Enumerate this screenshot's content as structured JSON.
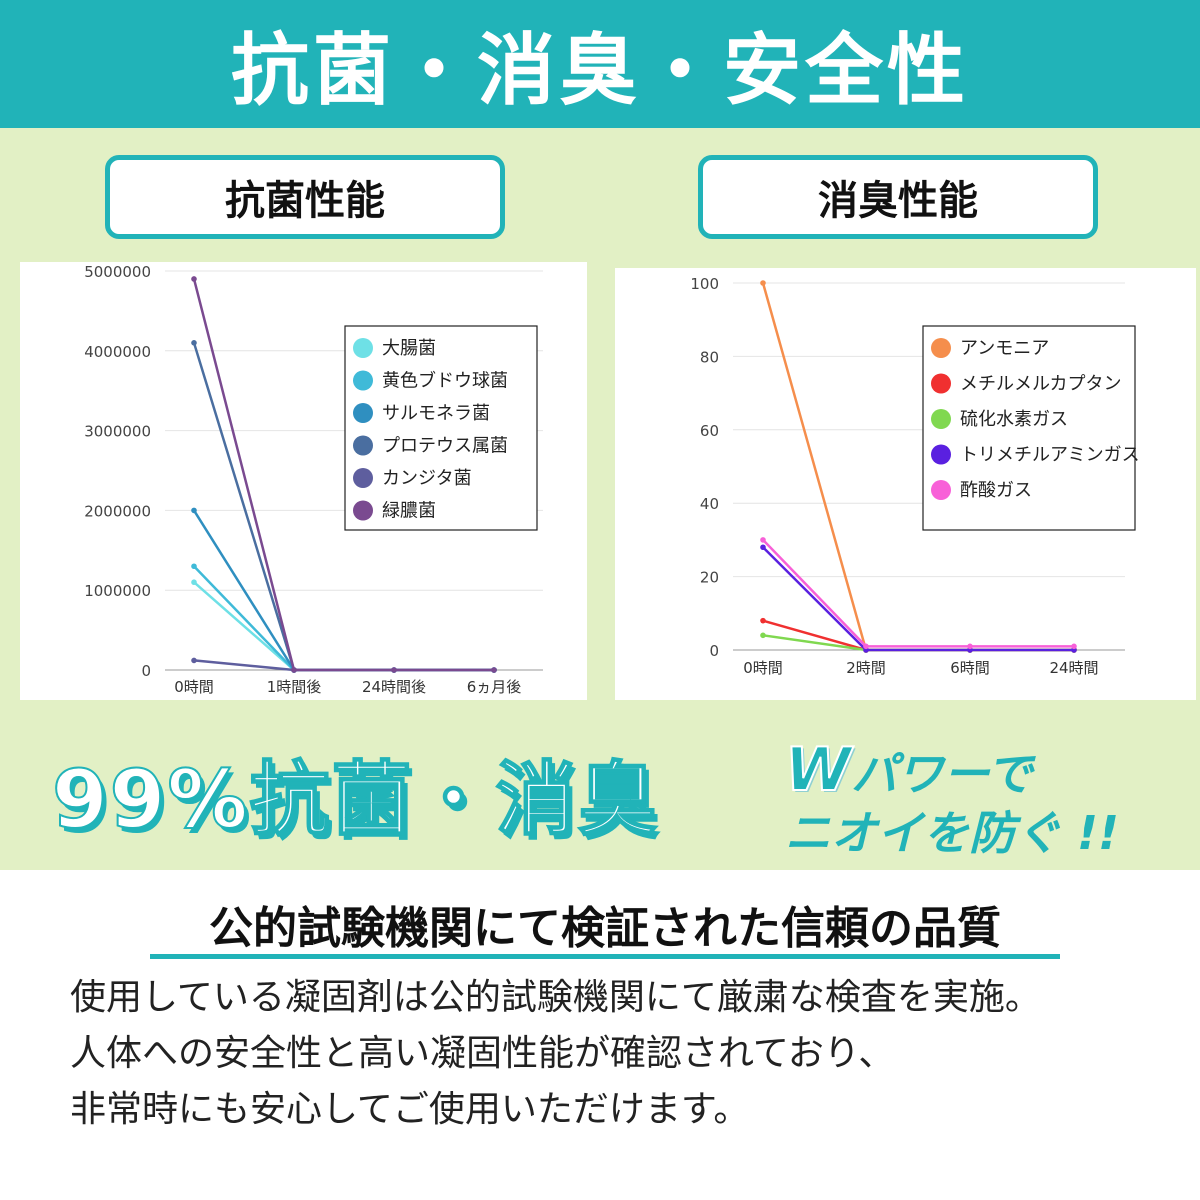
{
  "banner": {
    "title": "抗菌・消臭・安全性"
  },
  "sections": {
    "antibacterial_label": "抗菌性能",
    "deodorant_label": "消臭性能"
  },
  "colors": {
    "teal": "#21b3b8",
    "green_bg": "#e2f0c5"
  },
  "chart_data": [
    {
      "type": "line",
      "title": "",
      "xlabel": "",
      "ylabel": "",
      "categories": [
        "0時間",
        "1時間後",
        "24時間後",
        "6ヵ月後"
      ],
      "ylim": [
        0,
        5000000
      ],
      "yticks": [
        "0",
        "1000000",
        "2000000",
        "3000000",
        "4000000",
        "5000000"
      ],
      "grid": true,
      "legend_position": "top-right",
      "series": [
        {
          "name": "大腸菌",
          "color": "#6ee0e6",
          "values": [
            1100000,
            0,
            0,
            0
          ]
        },
        {
          "name": "黄色ブドウ球菌",
          "color": "#3fbad8",
          "values": [
            1300000,
            0,
            0,
            0
          ]
        },
        {
          "name": "サルモネラ菌",
          "color": "#2f8fc0",
          "values": [
            2000000,
            0,
            0,
            0
          ]
        },
        {
          "name": "プロテウス属菌",
          "color": "#4a6ea0",
          "values": [
            4100000,
            0,
            0,
            0
          ]
        },
        {
          "name": "カンジタ菌",
          "color": "#5e5e9e",
          "values": [
            120000,
            0,
            0,
            0
          ]
        },
        {
          "name": "緑膿菌",
          "color": "#7a4a90",
          "values": [
            4900000,
            0,
            0,
            0
          ]
        }
      ]
    },
    {
      "type": "line",
      "title": "",
      "xlabel": "",
      "ylabel": "",
      "categories": [
        "0時間",
        "2時間",
        "6時間",
        "24時間"
      ],
      "ylim": [
        0,
        100
      ],
      "yticks": [
        "0",
        "20",
        "40",
        "60",
        "80",
        "100"
      ],
      "grid": true,
      "legend_position": "top-right",
      "series": [
        {
          "name": "アンモニア",
          "color": "#f58e4c",
          "values": [
            100,
            0,
            0,
            0
          ]
        },
        {
          "name": "メチルメルカプタン",
          "color": "#f03030",
          "values": [
            8,
            0,
            0,
            0
          ]
        },
        {
          "name": "硫化水素ガス",
          "color": "#80d850",
          "values": [
            4,
            0,
            0,
            0
          ]
        },
        {
          "name": "トリメチルアミンガス",
          "color": "#5a20e0",
          "values": [
            28,
            0,
            0,
            0
          ]
        },
        {
          "name": "酢酸ガス",
          "color": "#f860d8",
          "values": [
            30,
            1,
            1,
            1
          ]
        }
      ]
    }
  ],
  "claim": {
    "big": "99%抗菌・消臭",
    "w_letter": "W",
    "line1_rest": "パワーで",
    "line2": "ニオイを防ぐ !!"
  },
  "quality": {
    "title": "公的試験機関にて検証された信頼の品質",
    "body_lines": [
      "使用している凝固剤は公的試験機関にて厳粛な検査を実施。",
      "人体への安全性と高い凝固性能が確認されており、",
      "非常時にも安心してご使用いただけます。"
    ]
  }
}
